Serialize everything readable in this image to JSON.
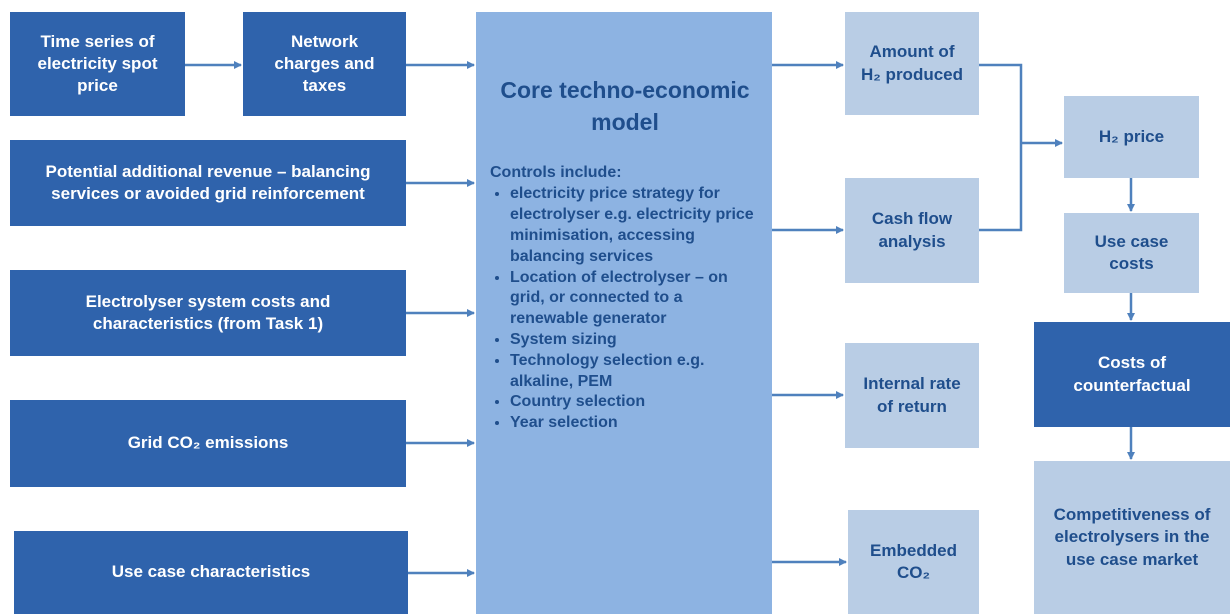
{
  "nodes": [
    {
      "label": "Time series of electricity spot price"
    },
    {
      "label": "Network charges and taxes"
    },
    {
      "label": "Potential additional revenue – balancing services or avoided grid reinforcement"
    },
    {
      "label": "Electrolyser system costs and characteristics (from Task 1)"
    },
    {
      "label": "Grid CO₂ emissions"
    },
    {
      "label": "Use case characteristics"
    },
    {
      "label": "Amount of H₂ produced"
    },
    {
      "label": "Cash flow analysis"
    },
    {
      "label": "Internal rate of return"
    },
    {
      "label": "Embedded CO₂"
    },
    {
      "label": "H₂ price"
    },
    {
      "label": "Use case costs"
    },
    {
      "label": "Costs of counterfactual"
    },
    {
      "label": "Competitiveness of electrolysers in the use case market"
    }
  ],
  "core": {
    "title": "Core techno-economic model",
    "controls_heading": "Controls include:",
    "bullets": [
      "electricity price strategy for electrolyser e.g. electricity price minimisation, accessing balancing services",
      "Location of electrolyser – on grid, or connected to a renewable generator",
      "System sizing",
      "Technology selection e.g. alkaline, PEM",
      "Country selection",
      "Year selection"
    ]
  }
}
